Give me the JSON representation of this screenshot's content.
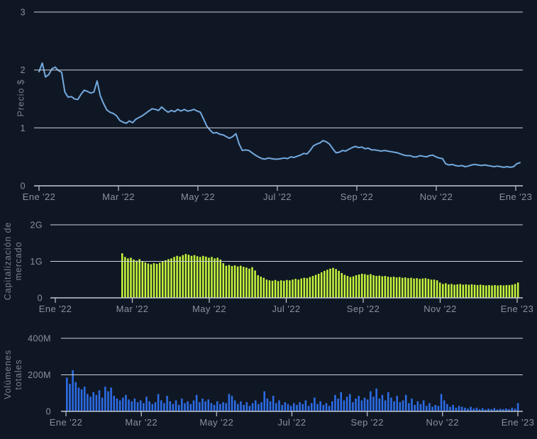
{
  "page": {
    "background": "#101724",
    "grid_color": "#cdd2da",
    "axis_line_color": "#c2c8d2",
    "tick_text_color": "#8a919c",
    "axis_title_color": "#78808c"
  },
  "chart_data": [
    {
      "type": "line",
      "name": "precio",
      "ylabel_lines": [
        "Precio $"
      ],
      "ylim": [
        0,
        3
      ],
      "yticks": [
        0,
        1,
        2,
        3
      ],
      "ytick_labels": [
        "0",
        "1",
        "2",
        "3"
      ],
      "x_tick_labels": [
        "Ene '22",
        "Mar '22",
        "May '22",
        "Jul '22",
        "Sep '22",
        "Nov '22",
        "Ene '23"
      ],
      "color": "#73aadf",
      "grid": true,
      "legend": "none",
      "values": [
        1.97,
        2.12,
        1.88,
        1.92,
        2.02,
        2.05,
        1.99,
        1.96,
        1.62,
        1.53,
        1.54,
        1.5,
        1.49,
        1.58,
        1.65,
        1.63,
        1.6,
        1.62,
        1.81,
        1.55,
        1.42,
        1.31,
        1.27,
        1.25,
        1.21,
        1.13,
        1.1,
        1.08,
        1.12,
        1.09,
        1.15,
        1.18,
        1.21,
        1.25,
        1.29,
        1.33,
        1.32,
        1.3,
        1.36,
        1.31,
        1.27,
        1.3,
        1.28,
        1.32,
        1.29,
        1.32,
        1.29,
        1.3,
        1.32,
        1.29,
        1.27,
        1.15,
        1.03,
        0.96,
        0.91,
        0.92,
        0.89,
        0.88,
        0.85,
        0.82,
        0.85,
        0.9,
        0.72,
        0.61,
        0.62,
        0.61,
        0.57,
        0.53,
        0.5,
        0.47,
        0.46,
        0.48,
        0.47,
        0.46,
        0.46,
        0.47,
        0.48,
        0.47,
        0.5,
        0.49,
        0.51,
        0.53,
        0.56,
        0.55,
        0.61,
        0.69,
        0.72,
        0.74,
        0.78,
        0.76,
        0.72,
        0.64,
        0.57,
        0.58,
        0.61,
        0.6,
        0.63,
        0.66,
        0.68,
        0.66,
        0.67,
        0.64,
        0.65,
        0.62,
        0.62,
        0.61,
        0.6,
        0.61,
        0.6,
        0.59,
        0.58,
        0.57,
        0.55,
        0.53,
        0.52,
        0.52,
        0.5,
        0.5,
        0.52,
        0.51,
        0.5,
        0.52,
        0.53,
        0.5,
        0.48,
        0.47,
        0.38,
        0.36,
        0.37,
        0.35,
        0.34,
        0.35,
        0.33,
        0.34,
        0.36,
        0.37,
        0.36,
        0.35,
        0.36,
        0.35,
        0.34,
        0.33,
        0.34,
        0.33,
        0.32,
        0.33,
        0.32,
        0.33,
        0.38,
        0.4
      ]
    },
    {
      "type": "bar",
      "name": "capitalizacion_de_mercado",
      "ylabel_lines": [
        "Capitalización de",
        "mercado"
      ],
      "ylim": [
        0,
        2
      ],
      "unit": "G",
      "yticks": [
        0,
        1,
        2
      ],
      "ytick_labels": [
        "0",
        "1G",
        "2G"
      ],
      "x_tick_labels": [
        "Ene '22",
        "Mar '22",
        "May '22",
        "Jul '22",
        "Sep '22",
        "Nov '22",
        "Ene '23"
      ],
      "color": "#c6f63c",
      "grid": true,
      "legend": "none",
      "data_starts_at": "mid-Feb 2022",
      "values": [
        1.22,
        1.12,
        1.08,
        1.1,
        1.05,
        1.02,
        1.06,
        1.0,
        0.97,
        0.94,
        0.92,
        0.95,
        0.93,
        0.96,
        1.0,
        1.03,
        1.06,
        1.08,
        1.12,
        1.15,
        1.13,
        1.17,
        1.2,
        1.18,
        1.15,
        1.17,
        1.14,
        1.12,
        1.15,
        1.13,
        1.1,
        1.12,
        1.08,
        1.1,
        1.05,
        0.95,
        0.88,
        0.9,
        0.87,
        0.89,
        0.86,
        0.88,
        0.85,
        0.83,
        0.8,
        0.84,
        0.75,
        0.62,
        0.58,
        0.55,
        0.5,
        0.48,
        0.47,
        0.49,
        0.46,
        0.48,
        0.47,
        0.49,
        0.48,
        0.5,
        0.52,
        0.5,
        0.53,
        0.55,
        0.54,
        0.57,
        0.6,
        0.63,
        0.66,
        0.7,
        0.74,
        0.77,
        0.8,
        0.82,
        0.79,
        0.74,
        0.68,
        0.63,
        0.6,
        0.57,
        0.59,
        0.62,
        0.64,
        0.66,
        0.65,
        0.63,
        0.65,
        0.62,
        0.6,
        0.61,
        0.59,
        0.6,
        0.58,
        0.57,
        0.58,
        0.56,
        0.57,
        0.55,
        0.56,
        0.54,
        0.55,
        0.53,
        0.54,
        0.52,
        0.53,
        0.54,
        0.52,
        0.5,
        0.5,
        0.48,
        0.42,
        0.38,
        0.4,
        0.37,
        0.38,
        0.36,
        0.37,
        0.38,
        0.36,
        0.37,
        0.36,
        0.37,
        0.36,
        0.35,
        0.36,
        0.35,
        0.34,
        0.35,
        0.34,
        0.35,
        0.34,
        0.35,
        0.34,
        0.35,
        0.35,
        0.36,
        0.38,
        0.42
      ]
    },
    {
      "type": "bar",
      "name": "volumenes_totales",
      "ylabel_lines": [
        "Volúmenes",
        "totales"
      ],
      "ylim": [
        0,
        400
      ],
      "unit": "M",
      "yticks": [
        0,
        200,
        400
      ],
      "ytick_labels": [
        "0",
        "200M",
        "400M"
      ],
      "x_tick_labels": [
        "Ene '22",
        "Mar '22",
        "May '22",
        "Jul '22",
        "Sep '22",
        "Nov '22",
        "Ene '23"
      ],
      "color": "#2c6ce4",
      "grid": true,
      "legend": "none",
      "values": [
        185,
        150,
        225,
        160,
        130,
        120,
        135,
        95,
        80,
        105,
        90,
        115,
        75,
        135,
        110,
        130,
        85,
        70,
        60,
        75,
        90,
        65,
        55,
        70,
        50,
        60,
        45,
        80,
        55,
        40,
        50,
        95,
        60,
        45,
        85,
        55,
        40,
        60,
        35,
        70,
        45,
        55,
        40,
        60,
        90,
        50,
        70,
        55,
        65,
        45,
        35,
        55,
        40,
        50,
        45,
        95,
        85,
        60,
        40,
        55,
        35,
        50,
        30,
        45,
        60,
        40,
        50,
        110,
        70,
        55,
        85,
        45,
        60,
        35,
        50,
        40,
        30,
        45,
        35,
        50,
        40,
        60,
        30,
        45,
        75,
        40,
        55,
        35,
        45,
        30,
        55,
        90,
        70,
        105,
        60,
        80,
        95,
        50,
        70,
        85,
        60,
        75,
        65,
        110,
        80,
        125,
        70,
        90,
        60,
        105,
        75,
        55,
        85,
        50,
        60,
        90,
        45,
        70,
        35,
        55,
        40,
        60,
        30,
        45,
        25,
        35,
        30,
        95,
        60,
        40,
        25,
        35,
        20,
        30,
        25,
        20,
        15,
        25,
        15,
        20,
        12,
        18,
        10,
        15,
        12,
        18,
        10,
        14,
        12,
        16,
        12,
        20,
        15,
        45
      ]
    }
  ]
}
